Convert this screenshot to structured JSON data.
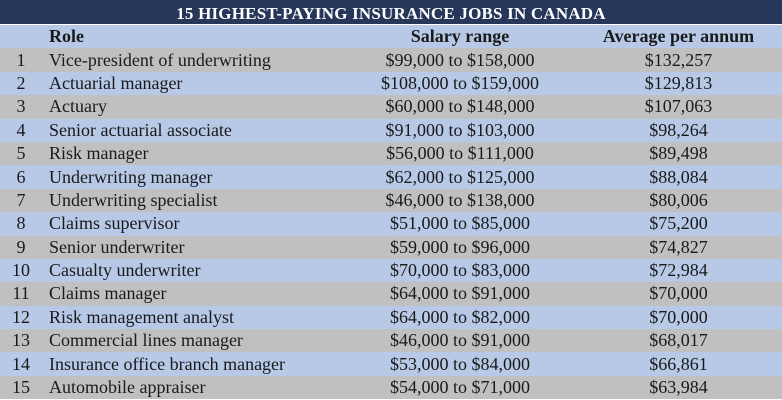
{
  "title": "15 HIGHEST-PAYING INSURANCE JOBS IN CANADA",
  "table": {
    "header": [
      "Role",
      "Salary range",
      "Average per annum"
    ],
    "rows": [
      [
        "1",
        "Vice-president of underwriting",
        "$99,000 to $158,000",
        "$132,257"
      ],
      [
        "2",
        "Actuarial manager",
        "$108,000 to $159,000",
        "$129,813"
      ],
      [
        "3",
        "Actuary",
        "$60,000 to $148,000",
        "$107,063"
      ],
      [
        "4",
        "Senior actuarial associate",
        "$91,000 to $103,000",
        "$98,264"
      ],
      [
        "5",
        "Risk manager",
        "$56,000 to $111,000",
        "$89,498"
      ],
      [
        "6",
        "Underwriting manager",
        "$62,000 to $125,000",
        "$88,084"
      ],
      [
        "7",
        "Underwriting specialist",
        "$46,000 to $138,000",
        "$80,006"
      ],
      [
        "8",
        "Claims supervisor",
        "$51,000 to $85,000",
        "$75,200"
      ],
      [
        "9",
        "Senior underwriter",
        "$59,000 to $96,000",
        "$74,827"
      ],
      [
        "10",
        "Casualty underwriter",
        "$70,000 to $83,000",
        "$72,984"
      ],
      [
        "11",
        "Claims manager",
        "$64,000 to $91,000",
        "$70,000"
      ],
      [
        "12",
        "Risk management analyst",
        "$64,000 to $82,000",
        "$70,000"
      ],
      [
        "13",
        "Commercial lines manager",
        "$46,000 to $91,000",
        "$68,017"
      ],
      [
        "14",
        "Insurance office branch manager",
        "$53,000 to $84,000",
        "$66,861"
      ],
      [
        "15",
        "Automobile appraiser",
        "$54,000 to $71,000",
        "$63,984"
      ]
    ]
  }
}
